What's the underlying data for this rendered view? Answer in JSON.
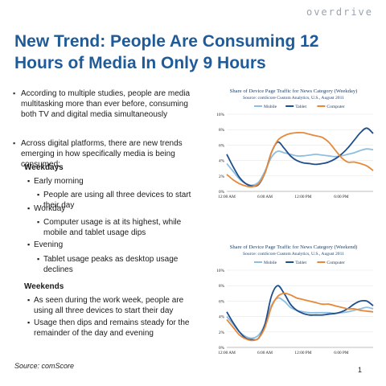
{
  "brand": "overdrive",
  "title": "New Trend: People Are Consuming 12 Hours of Media In Only 9 Hours",
  "bullets": {
    "b1": "According to multiple studies, people are media multitasking more than ever before, consuming both TV and digital media simultaneously",
    "b2": "Across digital platforms, there are new trends emerging in how specifically media is being consumed:",
    "weekdays_head": "Weekdays",
    "early": "Early morning",
    "early_sub": "People are using all three devices to start their day",
    "workday": "Workday",
    "workday_sub": "Computer usage is at its highest, while mobile and tablet usage dips",
    "evening": "Evening",
    "evening_sub": "Tablet usage peaks as desktop usage declines",
    "weekends_head": "Weekends",
    "we1": "As seen during the work week, people are using all three devices to start their day",
    "we2": "Usage then dips and remains steady for the remainder of the day and evening"
  },
  "source": "Source: comScore",
  "page_number": "1",
  "colors": {
    "mobile": "#8fbfe0",
    "tablet": "#1f4e8c",
    "computer": "#e6893a",
    "title": "#1f5b99"
  },
  "chart_data": [
    {
      "type": "line",
      "title": "Share of Device Page Traffic for News Category (Weekday)",
      "subtitle": "Source: comScore Custom Analytics, U.S., August 2011",
      "x": [
        0,
        1,
        2,
        3,
        4,
        5,
        6,
        7,
        8,
        9,
        10,
        11,
        12,
        13,
        14,
        15,
        16,
        17,
        18,
        19,
        20,
        21,
        22,
        23
      ],
      "xticks": [
        {
          "v": 0,
          "label": "12:00 AM"
        },
        {
          "v": 6,
          "label": "6:00 AM"
        },
        {
          "v": 12,
          "label": "12:00 PM"
        },
        {
          "v": 18,
          "label": "6:00 PM"
        }
      ],
      "yticks": [
        {
          "v": 0,
          "label": "0%"
        },
        {
          "v": 2,
          "label": "2%"
        },
        {
          "v": 4,
          "label": "4%"
        },
        {
          "v": 6,
          "label": "6%"
        },
        {
          "v": 8,
          "label": "8%"
        },
        {
          "v": 10,
          "label": "10%"
        }
      ],
      "ylim": [
        0,
        10
      ],
      "legend_position": "top",
      "series": [
        {
          "name": "Mobile",
          "color": "#8fbfe0",
          "values": [
            3.6,
            2.6,
            1.6,
            1.0,
            0.8,
            1.2,
            2.6,
            4.4,
            5.2,
            5.0,
            4.8,
            4.6,
            4.6,
            4.7,
            4.8,
            4.7,
            4.6,
            4.5,
            4.6,
            4.8,
            5.0,
            5.3,
            5.5,
            5.4
          ]
        },
        {
          "name": "Tablet",
          "color": "#1f4e8c",
          "values": [
            4.8,
            3.2,
            1.8,
            1.0,
            0.7,
            0.9,
            2.4,
            5.0,
            6.4,
            5.6,
            4.6,
            4.0,
            3.7,
            3.6,
            3.5,
            3.6,
            3.8,
            4.2,
            4.8,
            5.6,
            6.6,
            7.6,
            8.2,
            7.5
          ]
        },
        {
          "name": "Computer",
          "color": "#e6893a",
          "values": [
            2.2,
            1.5,
            1.0,
            0.7,
            0.6,
            1.0,
            2.4,
            5.0,
            6.6,
            7.2,
            7.5,
            7.6,
            7.6,
            7.4,
            7.2,
            7.0,
            6.4,
            5.4,
            4.4,
            3.8,
            3.8,
            3.6,
            3.3,
            2.7
          ]
        }
      ]
    },
    {
      "type": "line",
      "title": "Share of Device Page Traffic for News Category (Weekend)",
      "subtitle": "Source: comScore Custom Analytics, U.S., August 2011",
      "x": [
        0,
        1,
        2,
        3,
        4,
        5,
        6,
        7,
        8,
        9,
        10,
        11,
        12,
        13,
        14,
        15,
        16,
        17,
        18,
        19,
        20,
        21,
        22,
        23
      ],
      "xticks": [
        {
          "v": 0,
          "label": "12:00 AM"
        },
        {
          "v": 6,
          "label": "6:00 AM"
        },
        {
          "v": 12,
          "label": "12:00 PM"
        },
        {
          "v": 18,
          "label": "6:00 PM"
        }
      ],
      "yticks": [
        {
          "v": 0,
          "label": "0%"
        },
        {
          "v": 2,
          "label": "2%"
        },
        {
          "v": 4,
          "label": "4%"
        },
        {
          "v": 6,
          "label": "6%"
        },
        {
          "v": 8,
          "label": "8%"
        },
        {
          "v": 10,
          "label": "10%"
        }
      ],
      "ylim": [
        0,
        10
      ],
      "legend_position": "top",
      "series": [
        {
          "name": "Mobile",
          "color": "#8fbfe0",
          "values": [
            4.0,
            3.0,
            2.0,
            1.4,
            1.2,
            1.6,
            3.0,
            5.4,
            6.4,
            6.0,
            5.2,
            4.8,
            4.6,
            4.5,
            4.5,
            4.5,
            4.5,
            4.4,
            4.5,
            4.6,
            4.8,
            5.0,
            5.2,
            5.0
          ]
        },
        {
          "name": "Tablet",
          "color": "#1f4e8c",
          "values": [
            4.6,
            3.2,
            2.0,
            1.2,
            1.0,
            1.2,
            3.0,
            6.6,
            8.0,
            7.0,
            5.6,
            4.8,
            4.4,
            4.2,
            4.2,
            4.2,
            4.3,
            4.4,
            4.6,
            5.0,
            5.6,
            6.0,
            6.0,
            5.4
          ]
        },
        {
          "name": "Computer",
          "color": "#e6893a",
          "values": [
            3.6,
            2.6,
            1.6,
            1.1,
            0.9,
            1.2,
            2.6,
            5.2,
            6.6,
            7.0,
            6.8,
            6.4,
            6.2,
            6.0,
            5.8,
            5.6,
            5.6,
            5.4,
            5.2,
            5.0,
            5.0,
            4.8,
            4.7,
            4.6
          ]
        }
      ]
    }
  ]
}
